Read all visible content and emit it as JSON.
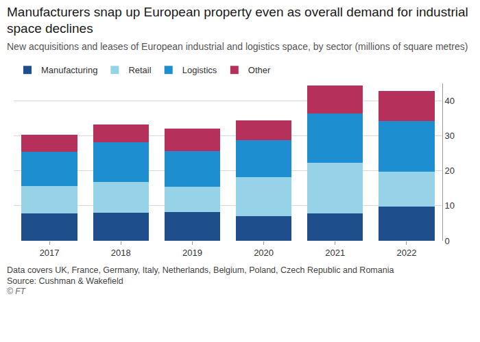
{
  "chart_data": {
    "type": "bar",
    "title": "Manufacturers snap up European property even as overall demand for industrial space declines",
    "subtitle": "New acquisitions and leases of European industrial and logistics space, by sector (millions of square metres)",
    "notes": [
      "Data covers UK, France, Germany, Italy, Netherlands, Belgium, Poland, Czech Republic and Romania",
      "Source: Cushman & Wakefield"
    ],
    "credit": "© FT",
    "categories": [
      "2017",
      "2018",
      "2019",
      "2020",
      "2021",
      "2022"
    ],
    "series": [
      {
        "name": "Manufacturing",
        "color": "#1e4f8c",
        "values": [
          7.9,
          8.0,
          8.2,
          7.0,
          7.9,
          9.8
        ]
      },
      {
        "name": "Retail",
        "color": "#96d3e8",
        "values": [
          7.8,
          8.8,
          7.2,
          11.2,
          14.4,
          10.0
        ]
      },
      {
        "name": "Logistics",
        "color": "#1d8fd1",
        "values": [
          9.8,
          11.4,
          10.3,
          10.6,
          14.0,
          14.5
        ]
      },
      {
        "name": "Other",
        "color": "#b5305a",
        "values": [
          4.9,
          5.0,
          6.4,
          5.7,
          8.2,
          8.6
        ]
      }
    ],
    "stacked": true,
    "ylim": [
      0,
      45
    ],
    "yticks": [
      0,
      10,
      20,
      30,
      40
    ],
    "grid": true,
    "legend": "top-left"
  }
}
